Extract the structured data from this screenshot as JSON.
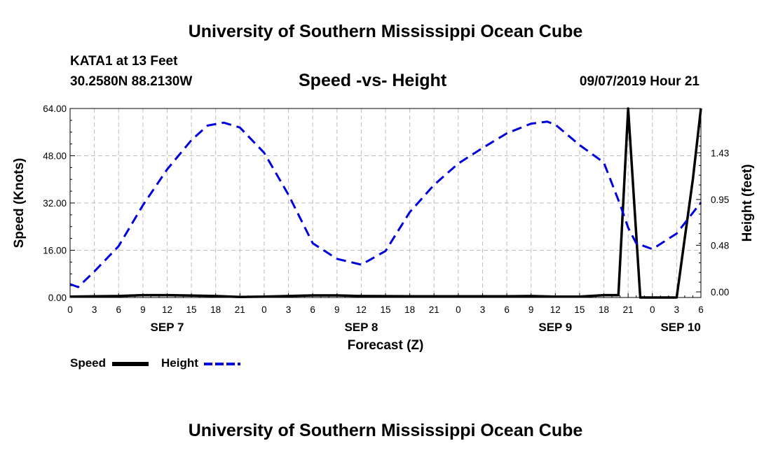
{
  "header": {
    "title": "University of Southern Mississippi Ocean Cube",
    "station": "KATA1 at 13 Feet",
    "coords": "30.2580N 88.2130W",
    "date": "09/07/2019 Hour 21"
  },
  "footer": {
    "title": "University of Southern Mississippi Ocean Cube"
  },
  "legend": {
    "speed_label": "Speed",
    "height_label": "Height",
    "speed_color": "#000000",
    "height_color": "#0000dd"
  },
  "chart_data": {
    "type": "line",
    "title": "Speed -vs- Height",
    "xlabel": "Forecast (Z)",
    "ylabel": "Speed (Knots)",
    "y2label": "Height (feet)",
    "grid": true,
    "x_hours_range": [
      0,
      78
    ],
    "ylim": [
      0,
      64
    ],
    "y2lim": [
      0,
      1.9
    ],
    "y_ticks": [
      "0.00",
      "16.00",
      "32.00",
      "48.00",
      "64.00"
    ],
    "y2_ticks": [
      {
        "value": 0.0,
        "label": "0.00"
      },
      {
        "value": 0.48,
        "label": "0.48"
      },
      {
        "value": 0.95,
        "label": "0.95"
      },
      {
        "value": 1.43,
        "label": "1.43"
      }
    ],
    "x_tick_labels": [
      "0",
      "3",
      "6",
      "9",
      "12",
      "15",
      "18",
      "21",
      "0",
      "3",
      "6",
      "9",
      "12",
      "15",
      "18",
      "21",
      "0",
      "3",
      "6",
      "9",
      "12",
      "15",
      "18",
      "21",
      "0",
      "3",
      "6"
    ],
    "day_labels": [
      {
        "label": "SEP 7",
        "hour": 12
      },
      {
        "label": "SEP 8",
        "hour": 36
      },
      {
        "label": "SEP 9",
        "hour": 60
      },
      {
        "label": "SEP 10",
        "hour": 75.5
      }
    ],
    "series": [
      {
        "name": "Speed",
        "axis": "left",
        "color": "#000000",
        "style": "solid",
        "x": [
          0,
          6,
          9,
          12,
          18,
          21,
          24,
          27,
          30,
          33,
          36,
          42,
          48,
          54,
          57,
          60,
          63,
          66,
          67.8,
          69,
          70.5,
          71,
          72,
          75,
          76,
          77,
          78
        ],
        "values": [
          0.3,
          0.5,
          0.8,
          0.8,
          0.5,
          0.2,
          0.3,
          0.5,
          0.7,
          0.7,
          0.5,
          0.4,
          0.4,
          0.4,
          0.5,
          0.3,
          0.3,
          0.8,
          0.8,
          64,
          0,
          0,
          0,
          0,
          20,
          40,
          64
        ]
      },
      {
        "name": "Height",
        "axis": "right",
        "color": "#0000dd",
        "style": "dashed",
        "x": [
          0,
          1,
          3,
          6,
          9,
          12,
          15,
          17,
          19,
          21,
          24,
          27,
          30,
          33,
          36,
          39,
          42,
          45,
          48,
          51,
          54,
          57,
          59,
          60,
          63,
          66,
          68,
          69,
          70,
          72,
          75,
          78
        ],
        "values": [
          0.08,
          0.05,
          0.21,
          0.47,
          0.89,
          1.26,
          1.56,
          1.71,
          1.74,
          1.69,
          1.43,
          1.0,
          0.5,
          0.34,
          0.28,
          0.42,
          0.82,
          1.1,
          1.32,
          1.48,
          1.63,
          1.73,
          1.75,
          1.72,
          1.51,
          1.33,
          0.9,
          0.66,
          0.5,
          0.44,
          0.6,
          0.92
        ]
      }
    ]
  }
}
